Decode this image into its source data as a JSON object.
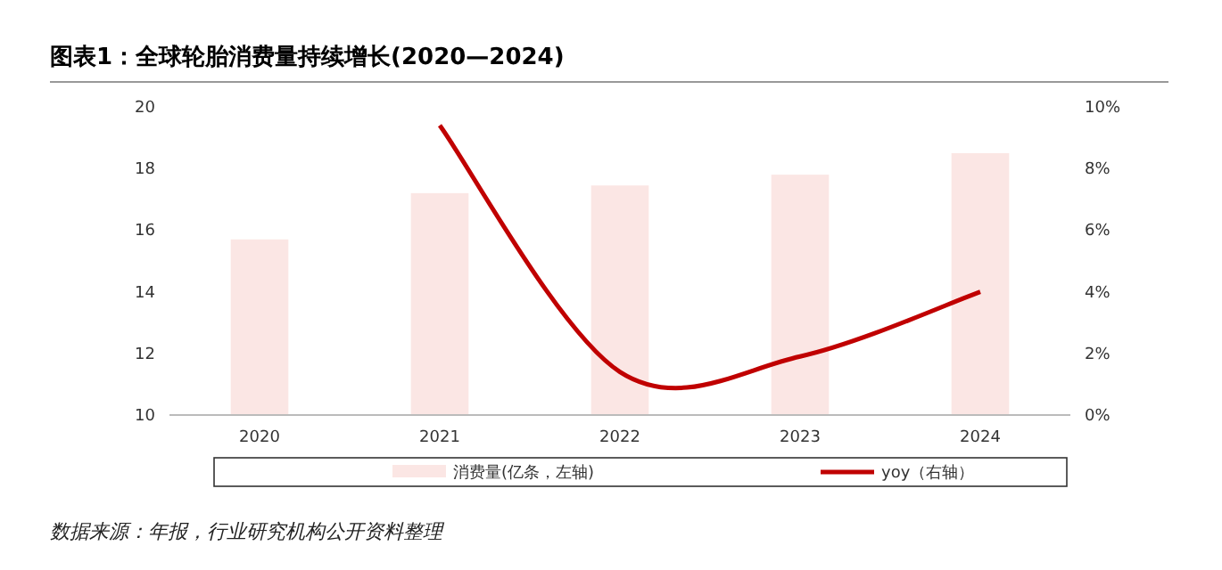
{
  "chart_data": {
    "type": "bar",
    "title": "图表1：全球轮胎消费量持续增长(2020—2024)",
    "categories": [
      "2020",
      "2021",
      "2022",
      "2023",
      "2024"
    ],
    "series": [
      {
        "name": "消费量(亿条，左轴)",
        "color": "#fbe6e4",
        "values": [
          15.7,
          17.2,
          17.45,
          17.8,
          18.5
        ]
      },
      {
        "name": "yoy（右轴）",
        "type": "line",
        "axis": "y2",
        "color": "#c00000",
        "values": [
          null,
          9.4,
          1.4,
          1.9,
          4.0
        ]
      }
    ],
    "ylim": [
      10,
      20
    ],
    "yticks": [
      10,
      12,
      14,
      16,
      18,
      20
    ],
    "y2lim": [
      0,
      10
    ],
    "y2ticks": [
      {
        "value": 0,
        "label": "0%"
      },
      {
        "value": 2,
        "label": "2%"
      },
      {
        "value": 4,
        "label": "4%"
      },
      {
        "value": 6,
        "label": "6%"
      },
      {
        "value": 8,
        "label": "8%"
      },
      {
        "value": 10,
        "label": "10%"
      }
    ],
    "legend": "bottom",
    "grid": false,
    "annotations": [
      "数据来源：年报，行业研究机构公开资料整理"
    ]
  }
}
